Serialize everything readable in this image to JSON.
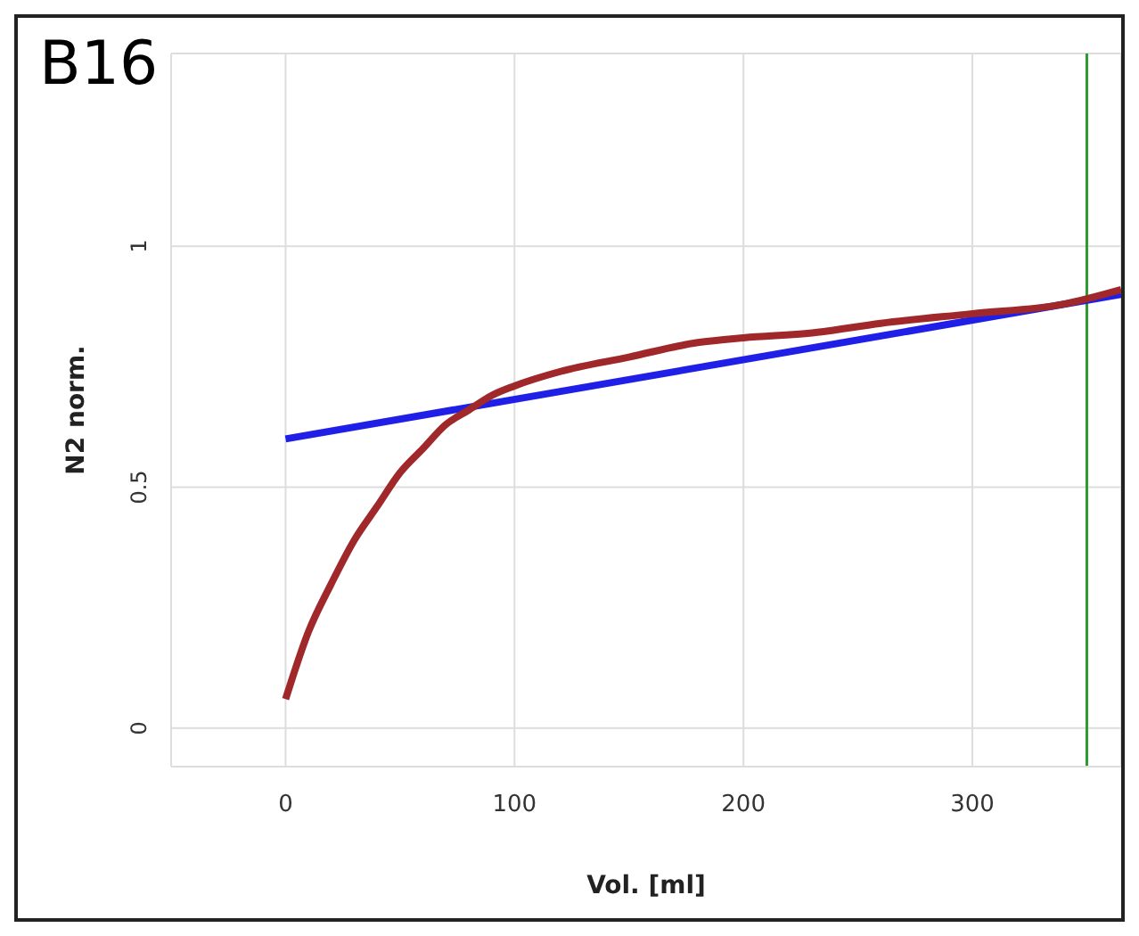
{
  "chart_data": {
    "type": "line",
    "title": "B16",
    "xlabel": "Vol. [ml]",
    "ylabel": "N2 norm.",
    "xlim": [
      -50,
      365
    ],
    "xticks": [
      0,
      100,
      200,
      300
    ],
    "ylim": [
      -0.08,
      1.4
    ],
    "yticks": [
      0,
      0.5,
      1
    ],
    "grid": true,
    "marker": "none",
    "line_style": "solid",
    "series": [
      {
        "color": "#1f1fe8",
        "x": [
          0,
          365
        ],
        "values": [
          0.6,
          0.9
        ]
      },
      {
        "color": "#a0282a",
        "x": [
          0,
          10,
          20,
          30,
          40,
          50,
          60,
          70,
          80,
          90,
          100,
          120,
          150,
          180,
          200,
          230,
          260,
          300,
          340,
          365
        ],
        "values": [
          0.06,
          0.2,
          0.3,
          0.39,
          0.46,
          0.53,
          0.58,
          0.63,
          0.66,
          0.69,
          0.71,
          0.74,
          0.77,
          0.8,
          0.81,
          0.82,
          0.84,
          0.86,
          0.88,
          0.91
        ]
      }
    ],
    "ref_lines": [
      {
        "axis": "x",
        "value": 350,
        "color": "#2e9a2e"
      }
    ]
  }
}
